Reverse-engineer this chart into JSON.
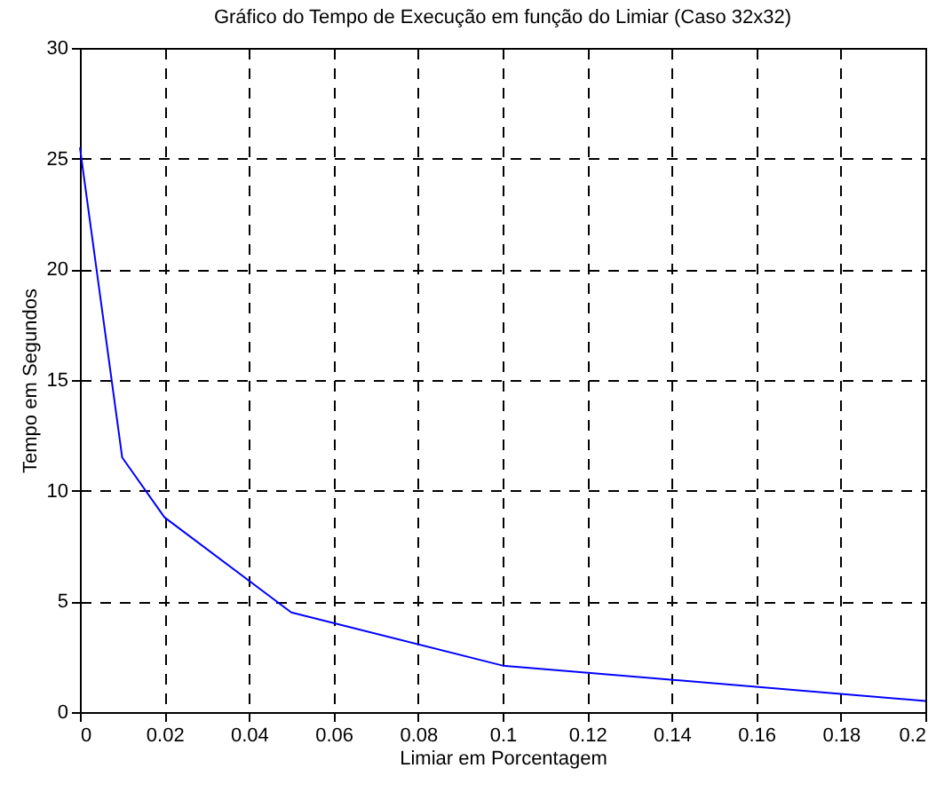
{
  "chart_data": {
    "type": "line",
    "title": "Gráfico do Tempo de Execução em função do Limiar (Caso 32x32)",
    "xlabel": "Limiar em Porcentagem",
    "ylabel": "Tempo em Segundos",
    "x": [
      0,
      0.01,
      0.02,
      0.05,
      0.1,
      0.2
    ],
    "series": [
      {
        "color": "#0000ff",
        "values": [
          25.5,
          11.5,
          8.8,
          4.5,
          2.1,
          0.5
        ]
      }
    ],
    "xlim": [
      0,
      0.2
    ],
    "xticks": [
      0,
      0.02,
      0.04,
      0.06,
      0.08,
      0.1,
      0.12,
      0.14,
      0.16,
      0.18,
      0.2
    ],
    "ylim": [
      0,
      30
    ],
    "yticks": [
      0,
      5,
      10,
      15,
      20,
      25,
      30
    ],
    "grid": true,
    "line_style": "solid",
    "marker": "none"
  }
}
